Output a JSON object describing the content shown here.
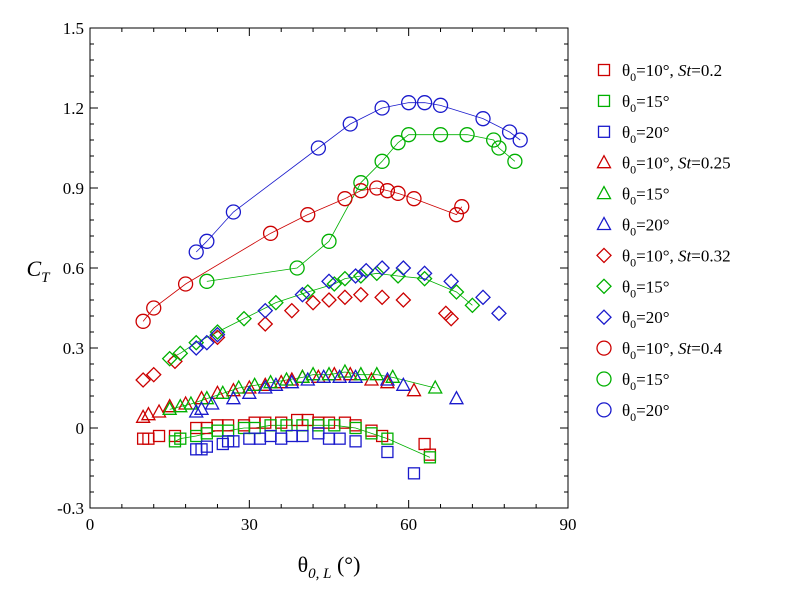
{
  "chart_data": {
    "type": "scatter",
    "xlabel": "θ",
    "xlabel_sub": "0, L",
    "xlabel_unit": " (°)",
    "ylabel": "C",
    "ylabel_sub": "T",
    "xlim": [
      0,
      90
    ],
    "ylim": [
      -0.3,
      1.5
    ],
    "xticks": [
      0,
      30,
      60,
      90
    ],
    "yticks": [
      -0.3,
      0,
      0.3,
      0.6,
      0.9,
      1.2,
      1.5
    ],
    "xtick_labels": [
      "0",
      "30",
      "60",
      "90"
    ],
    "ytick_labels": [
      "-0.3",
      "0",
      "0.3",
      "0.6",
      "0.9",
      "1.2",
      "1.5"
    ],
    "grid": false,
    "legend_position": "right",
    "series": [
      {
        "legend": [
          "θ",
          "0",
          "=10°, ",
          "St",
          "=0.2"
        ],
        "color": "#cc0000",
        "marker": "square",
        "line": false,
        "x": [
          10,
          11,
          13,
          16,
          20,
          22,
          24,
          26,
          29,
          31,
          33,
          36,
          39,
          41,
          43,
          45,
          48,
          50,
          53,
          55,
          63,
          64
        ],
        "y": [
          -0.04,
          -0.04,
          -0.03,
          -0.03,
          0.0,
          0.0,
          0.01,
          0.01,
          0.01,
          0.02,
          0.02,
          0.02,
          0.03,
          0.03,
          0.02,
          0.02,
          0.02,
          0.01,
          -0.01,
          -0.03,
          -0.06,
          -0.1
        ]
      },
      {
        "legend": [
          "θ",
          "0",
          "=15°"
        ],
        "color": "#00b000",
        "marker": "square",
        "line": true,
        "x": [
          16,
          17,
          20,
          22,
          24,
          26,
          29,
          31,
          34,
          37,
          40,
          43,
          46,
          50,
          53,
          56,
          64
        ],
        "y": [
          -0.05,
          -0.04,
          -0.03,
          -0.02,
          -0.01,
          -0.01,
          0.0,
          0.0,
          0.01,
          0.01,
          0.01,
          0.01,
          0.01,
          0.0,
          -0.02,
          -0.04,
          -0.11
        ]
      },
      {
        "legend": [
          "θ",
          "0",
          "=20°"
        ],
        "color": "#1a1acc",
        "marker": "square",
        "line": false,
        "x": [
          20,
          21,
          22,
          25,
          26,
          27,
          30,
          32,
          34,
          36,
          38,
          40,
          43,
          45,
          47,
          50,
          56,
          61
        ],
        "y": [
          -0.08,
          -0.08,
          -0.07,
          -0.06,
          -0.05,
          -0.05,
          -0.04,
          -0.04,
          -0.03,
          -0.04,
          -0.03,
          -0.03,
          -0.02,
          -0.04,
          -0.04,
          -0.05,
          -0.09,
          -0.17
        ]
      },
      {
        "legend": [
          "θ",
          "0",
          "=10°, ",
          "St",
          "=0.25"
        ],
        "color": "#cc0000",
        "marker": "triangle",
        "line": false,
        "x": [
          10,
          11,
          13,
          15,
          18,
          21,
          24,
          27,
          30,
          33,
          36,
          38,
          40,
          43,
          46,
          49,
          53,
          56,
          61
        ],
        "y": [
          0.04,
          0.05,
          0.06,
          0.08,
          0.09,
          0.11,
          0.13,
          0.14,
          0.15,
          0.16,
          0.17,
          0.18,
          0.19,
          0.19,
          0.2,
          0.2,
          0.18,
          0.17,
          0.14
        ]
      },
      {
        "legend": [
          "θ",
          "0",
          "=15°"
        ],
        "color": "#00b000",
        "marker": "triangle",
        "line": true,
        "x": [
          15,
          17,
          19,
          22,
          25,
          28,
          31,
          34,
          37,
          40,
          42,
          45,
          48,
          51,
          54,
          57,
          65
        ],
        "y": [
          0.07,
          0.08,
          0.09,
          0.11,
          0.13,
          0.15,
          0.16,
          0.17,
          0.18,
          0.19,
          0.2,
          0.2,
          0.21,
          0.2,
          0.2,
          0.19,
          0.15
        ]
      },
      {
        "legend": [
          "θ",
          "0",
          "=20°"
        ],
        "color": "#1a1acc",
        "marker": "triangle",
        "line": false,
        "x": [
          20,
          21,
          23,
          27,
          30,
          33,
          35,
          38,
          41,
          44,
          47,
          50,
          56,
          59,
          69
        ],
        "y": [
          0.06,
          0.07,
          0.09,
          0.11,
          0.13,
          0.15,
          0.16,
          0.17,
          0.18,
          0.19,
          0.19,
          0.19,
          0.18,
          0.16,
          0.11
        ]
      },
      {
        "legend": [
          "θ",
          "0",
          "=10°, ",
          "St",
          "=0.32"
        ],
        "color": "#cc0000",
        "marker": "diamond",
        "line": false,
        "x": [
          10,
          12,
          16,
          24,
          33,
          38,
          42,
          45,
          48,
          51,
          55,
          59,
          67,
          68
        ],
        "y": [
          0.18,
          0.2,
          0.25,
          0.34,
          0.39,
          0.44,
          0.47,
          0.48,
          0.49,
          0.5,
          0.49,
          0.48,
          0.43,
          0.41
        ]
      },
      {
        "legend": [
          "θ",
          "0",
          "=15°"
        ],
        "color": "#00b000",
        "marker": "diamond",
        "line": true,
        "x": [
          15,
          17,
          20,
          24,
          29,
          35,
          41,
          46,
          48,
          51,
          54,
          58,
          63,
          69,
          72
        ],
        "y": [
          0.26,
          0.28,
          0.32,
          0.36,
          0.41,
          0.47,
          0.51,
          0.54,
          0.56,
          0.57,
          0.58,
          0.57,
          0.56,
          0.51,
          0.46
        ]
      },
      {
        "legend": [
          "θ",
          "0",
          "=20°"
        ],
        "color": "#1a1acc",
        "marker": "diamond",
        "line": false,
        "x": [
          20,
          22,
          24,
          33,
          40,
          45,
          50,
          52,
          55,
          59,
          63,
          68,
          74,
          77
        ],
        "y": [
          0.3,
          0.32,
          0.35,
          0.44,
          0.5,
          0.55,
          0.57,
          0.59,
          0.6,
          0.6,
          0.58,
          0.55,
          0.49,
          0.43
        ]
      },
      {
        "legend": [
          "θ",
          "0",
          "=10°, ",
          "St",
          "=0.4"
        ],
        "color": "#cc0000",
        "marker": "circle",
        "line": true,
        "x": [
          10,
          12,
          18,
          34,
          41,
          48,
          51,
          54,
          56,
          58,
          61,
          69,
          70
        ],
        "y": [
          0.4,
          0.45,
          0.54,
          0.73,
          0.8,
          0.86,
          0.89,
          0.9,
          0.89,
          0.88,
          0.86,
          0.8,
          0.83
        ]
      },
      {
        "legend": [
          "θ",
          "0",
          "=15°"
        ],
        "color": "#00b000",
        "marker": "circle",
        "line": true,
        "x": [
          22,
          39,
          45,
          51,
          55,
          58,
          60,
          66,
          71,
          76,
          77,
          80
        ],
        "y": [
          0.55,
          0.6,
          0.7,
          0.92,
          1.0,
          1.07,
          1.1,
          1.1,
          1.1,
          1.08,
          1.05,
          1.0
        ]
      },
      {
        "legend": [
          "θ",
          "0",
          "=20°"
        ],
        "color": "#1a1acc",
        "marker": "circle",
        "line": true,
        "x": [
          20,
          22,
          27,
          43,
          49,
          55,
          60,
          63,
          66,
          74,
          79,
          81
        ],
        "y": [
          0.66,
          0.7,
          0.81,
          1.05,
          1.14,
          1.2,
          1.22,
          1.22,
          1.21,
          1.16,
          1.11,
          1.08
        ]
      }
    ]
  }
}
